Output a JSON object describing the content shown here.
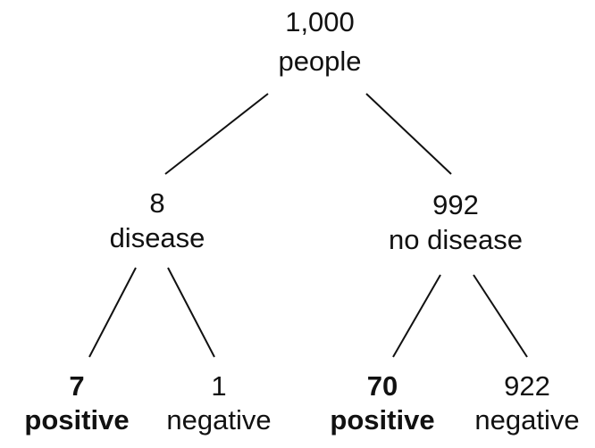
{
  "nodes": [
    {
      "count": "1,000",
      "label": "people"
    },
    {
      "count": "8",
      "label": "disease"
    },
    {
      "count": "992",
      "label": "no disease"
    },
    {
      "count": "7",
      "label": "positive"
    },
    {
      "count": "1",
      "label": "negative"
    },
    {
      "count": "70",
      "label": "positive"
    },
    {
      "count": "922",
      "label": "negative"
    }
  ]
}
